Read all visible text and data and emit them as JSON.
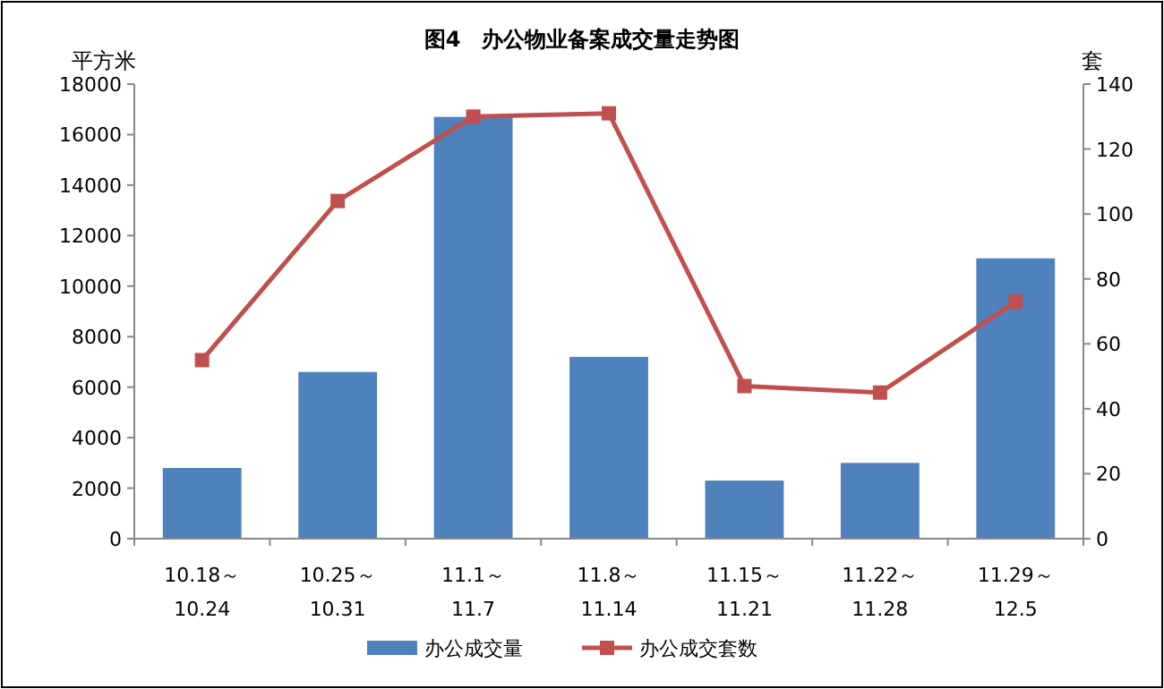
{
  "chart_data": {
    "type": "bar",
    "title": "图4　办公物业备案成交量走势图",
    "ylabel": "平方米",
    "y2label": "套",
    "categories": [
      "10.18～\n10.24",
      "10.25～\n10.31",
      "11.1～\n11.7",
      "11.8～\n11.14",
      "11.15～\n11.21",
      "11.22～\n11.28",
      "11.29～\n12.5"
    ],
    "series": [
      {
        "name": "办公成交量",
        "color": "#4f81bd",
        "values": [
          2800,
          6600,
          16700,
          7200,
          2300,
          3000,
          11100
        ]
      },
      {
        "name": "办公成交套数",
        "type": "line",
        "axis": "y2",
        "color": "#c0504d",
        "marker": "square",
        "values": [
          55,
          104,
          130,
          131,
          47,
          45,
          73
        ]
      }
    ],
    "ylim": [
      0,
      18000
    ],
    "yticks": [
      0,
      2000,
      4000,
      6000,
      8000,
      10000,
      12000,
      14000,
      16000,
      18000
    ],
    "y2lim": [
      0,
      140
    ],
    "y2ticks": [
      0,
      20,
      40,
      60,
      80,
      100,
      120,
      140
    ],
    "legend": "bottom",
    "grid": false
  }
}
